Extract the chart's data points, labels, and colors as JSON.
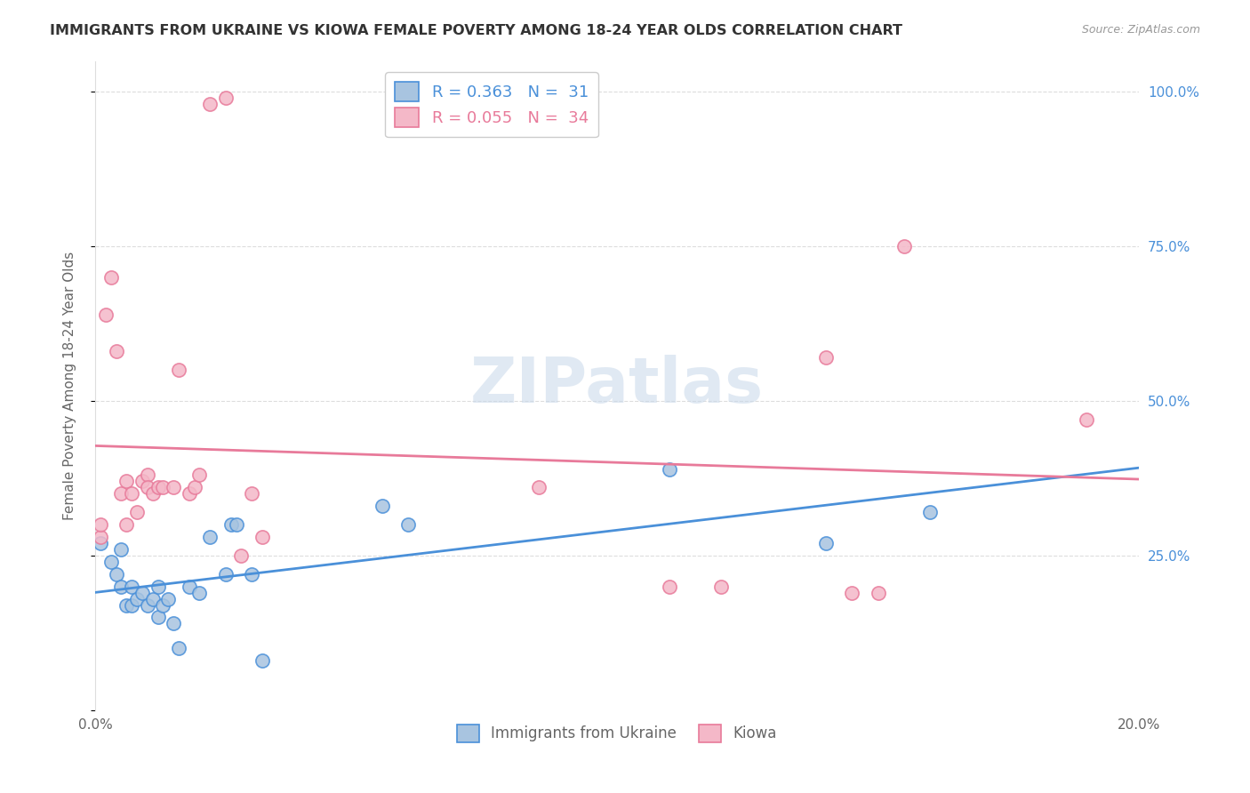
{
  "title": "IMMIGRANTS FROM UKRAINE VS KIOWA FEMALE POVERTY AMONG 18-24 YEAR OLDS CORRELATION CHART",
  "source": "Source: ZipAtlas.com",
  "ylabel": "Female Poverty Among 18-24 Year Olds",
  "xlim": [
    0.0,
    0.2
  ],
  "ylim": [
    0.0,
    1.05
  ],
  "legend_r_ukraine": "R = 0.363",
  "legend_n_ukraine": "N =  31",
  "legend_r_kiowa": "R = 0.055",
  "legend_n_kiowa": "N =  34",
  "color_ukraine": "#a8c4e0",
  "color_ukraine_line": "#4a90d9",
  "color_kiowa": "#f4b8c8",
  "color_kiowa_line": "#e87a9a",
  "watermark": "ZIPatlas",
  "ukraine_x": [
    0.001,
    0.003,
    0.004,
    0.005,
    0.005,
    0.006,
    0.007,
    0.007,
    0.008,
    0.009,
    0.01,
    0.011,
    0.012,
    0.012,
    0.013,
    0.014,
    0.015,
    0.016,
    0.018,
    0.02,
    0.022,
    0.025,
    0.026,
    0.027,
    0.03,
    0.032,
    0.055,
    0.06,
    0.11,
    0.14,
    0.16
  ],
  "ukraine_y": [
    0.27,
    0.24,
    0.22,
    0.2,
    0.26,
    0.17,
    0.17,
    0.2,
    0.18,
    0.19,
    0.17,
    0.18,
    0.2,
    0.15,
    0.17,
    0.18,
    0.14,
    0.1,
    0.2,
    0.19,
    0.28,
    0.22,
    0.3,
    0.3,
    0.22,
    0.08,
    0.33,
    0.3,
    0.39,
    0.27,
    0.32
  ],
  "kiowa_x": [
    0.001,
    0.001,
    0.002,
    0.003,
    0.004,
    0.005,
    0.006,
    0.006,
    0.007,
    0.008,
    0.009,
    0.01,
    0.01,
    0.011,
    0.012,
    0.013,
    0.015,
    0.016,
    0.018,
    0.019,
    0.02,
    0.022,
    0.025,
    0.028,
    0.03,
    0.032,
    0.085,
    0.11,
    0.12,
    0.14,
    0.145,
    0.15,
    0.155,
    0.19
  ],
  "kiowa_y": [
    0.28,
    0.3,
    0.64,
    0.7,
    0.58,
    0.35,
    0.37,
    0.3,
    0.35,
    0.32,
    0.37,
    0.38,
    0.36,
    0.35,
    0.36,
    0.36,
    0.36,
    0.55,
    0.35,
    0.36,
    0.38,
    0.98,
    0.99,
    0.25,
    0.35,
    0.28,
    0.36,
    0.2,
    0.2,
    0.57,
    0.19,
    0.19,
    0.75,
    0.47
  ],
  "grid_color": "#dddddd",
  "background_color": "#ffffff",
  "title_color": "#333333",
  "axis_color": "#666666",
  "right_axis_color": "#4a90d9"
}
